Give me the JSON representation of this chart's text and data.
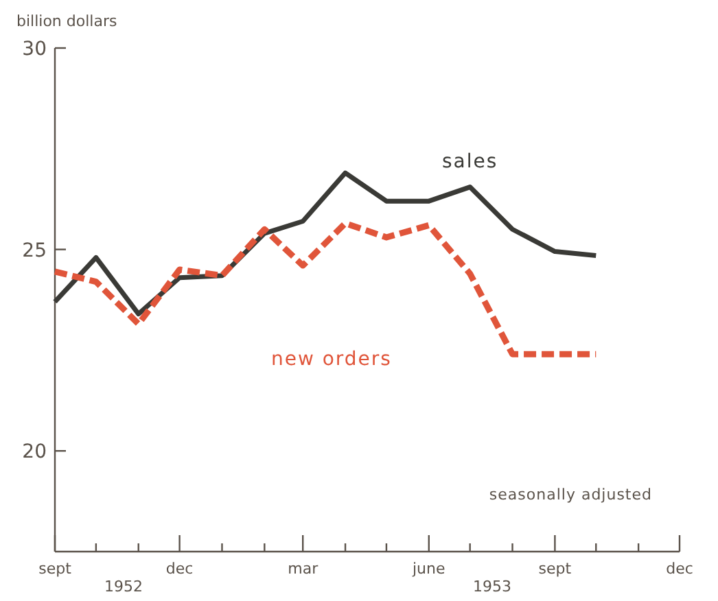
{
  "chart_data": {
    "type": "line",
    "ylabel": "billion dollars",
    "x": [
      "1952-09",
      "1952-10",
      "1952-11",
      "1952-12",
      "1953-01",
      "1953-02",
      "1953-03",
      "1953-04",
      "1953-05",
      "1953-06",
      "1953-07",
      "1953-08",
      "1953-09",
      "1953-10"
    ],
    "series": [
      {
        "name": "sales",
        "color": "#3a3a36",
        "line_style": "solid",
        "values": [
          23.7,
          24.8,
          23.4,
          24.3,
          24.35,
          25.4,
          25.7,
          26.9,
          26.2,
          26.2,
          26.55,
          25.5,
          24.95,
          24.85
        ]
      },
      {
        "name": "new orders",
        "color": "#e0553a",
        "line_style": "dashed",
        "values": [
          24.45,
          24.2,
          23.15,
          24.5,
          24.35,
          25.5,
          24.6,
          25.65,
          25.3,
          25.6,
          24.4,
          22.4,
          22.4,
          22.4
        ]
      }
    ],
    "xlim": [
      "1952-09",
      "1953-12"
    ],
    "xticks": [
      {
        "value": "1952-09",
        "label": "sept"
      },
      {
        "value": "1952-10",
        "label": null
      },
      {
        "value": "1952-11",
        "label": null
      },
      {
        "value": "1952-12",
        "label": "dec"
      },
      {
        "value": "1953-01",
        "label": null
      },
      {
        "value": "1953-02",
        "label": null
      },
      {
        "value": "1953-03",
        "label": "mar"
      },
      {
        "value": "1953-04",
        "label": null
      },
      {
        "value": "1953-05",
        "label": null
      },
      {
        "value": "1953-06",
        "label": "june"
      },
      {
        "value": "1953-07",
        "label": null
      },
      {
        "value": "1953-08",
        "label": null
      },
      {
        "value": "1953-09",
        "label": "sept"
      },
      {
        "value": "1953-10",
        "label": null
      },
      {
        "value": "1953-11",
        "label": null
      },
      {
        "value": "1953-12",
        "label": "dec"
      }
    ],
    "ylim": [
      17.5,
      30
    ],
    "yticks": [
      20,
      25,
      30
    ],
    "annotations": [
      "seasonally adjusted",
      "1952",
      "1953"
    ],
    "grid": false,
    "marker": "none"
  }
}
